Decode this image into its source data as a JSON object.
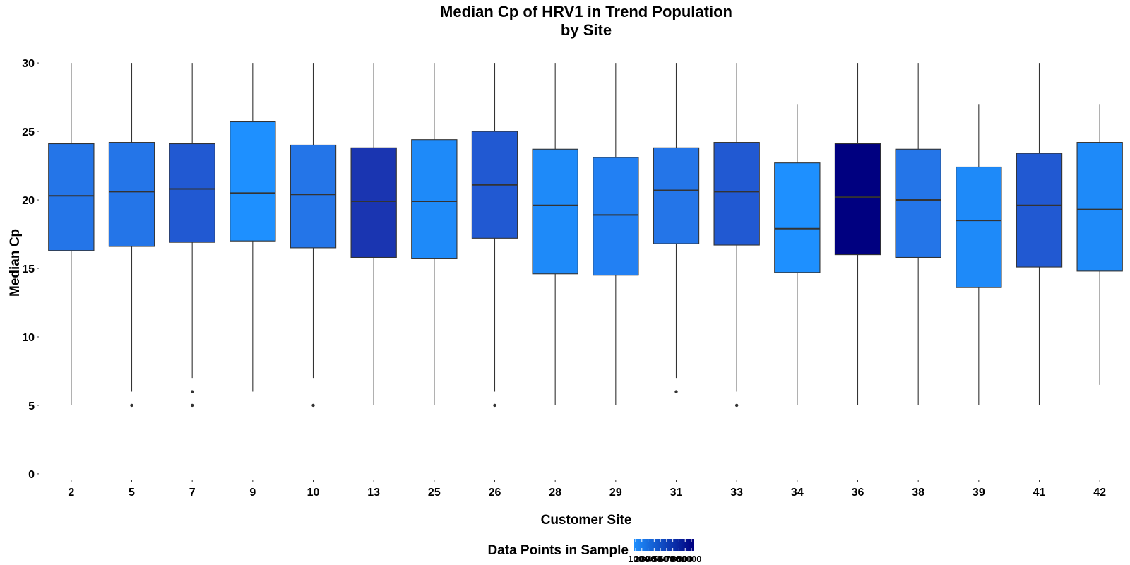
{
  "chart_data": {
    "type": "box",
    "title": [
      "Median Cp of HRV1 in Trend Population",
      "by Site"
    ],
    "xlabel": "Customer Site",
    "ylabel": "Median Cp",
    "ylim": [
      -1.5,
      31.5
    ],
    "yticks": [
      0,
      5,
      10,
      15,
      20,
      25,
      30
    ],
    "grid": false,
    "legend": {
      "title": "Data Points in Sample",
      "position": "bottom",
      "tick_labels": [
        "100",
        "200",
        "300",
        "400",
        "500",
        "600",
        "700",
        "800",
        "900",
        "1000"
      ],
      "color_low": "#1e90ff",
      "color_high": "#000080"
    },
    "boxes": [
      {
        "site": "2",
        "whisker_low": 5,
        "q1": 16.3,
        "median": 20.3,
        "q3": 24.1,
        "whisker_high": 30,
        "outliers": [],
        "n": 200,
        "color": "#2475e8"
      },
      {
        "site": "5",
        "whisker_low": 6,
        "q1": 16.6,
        "median": 20.6,
        "q3": 24.2,
        "whisker_high": 30,
        "outliers": [
          5
        ],
        "n": 200,
        "color": "#2475e8"
      },
      {
        "site": "7",
        "whisker_low": 7,
        "q1": 16.9,
        "median": 20.8,
        "q3": 24.1,
        "whisker_high": 30,
        "outliers": [
          6,
          5
        ],
        "n": 400,
        "color": "#2159d2"
      },
      {
        "site": "9",
        "whisker_low": 6,
        "q1": 17.0,
        "median": 20.5,
        "q3": 25.7,
        "whisker_high": 30,
        "outliers": [],
        "n": 100,
        "color": "#1e90ff"
      },
      {
        "site": "10",
        "whisker_low": 7,
        "q1": 16.5,
        "median": 20.4,
        "q3": 24.0,
        "whisker_high": 30,
        "outliers": [
          5
        ],
        "n": 200,
        "color": "#2475e8"
      },
      {
        "site": "13",
        "whisker_low": 5,
        "q1": 15.8,
        "median": 19.9,
        "q3": 23.8,
        "whisker_high": 30,
        "outliers": [],
        "n": 700,
        "color": "#1a35b1"
      },
      {
        "site": "25",
        "whisker_low": 5,
        "q1": 15.7,
        "median": 19.9,
        "q3": 24.4,
        "whisker_high": 30,
        "outliers": [],
        "n": 100,
        "color": "#1e8af9"
      },
      {
        "site": "26",
        "whisker_low": 6,
        "q1": 17.2,
        "median": 21.1,
        "q3": 25.0,
        "whisker_high": 30,
        "outliers": [
          5
        ],
        "n": 400,
        "color": "#2159d2"
      },
      {
        "site": "28",
        "whisker_low": 5,
        "q1": 14.6,
        "median": 19.6,
        "q3": 23.7,
        "whisker_high": 30,
        "outliers": [],
        "n": 100,
        "color": "#1e8af9"
      },
      {
        "site": "29",
        "whisker_low": 5,
        "q1": 14.5,
        "median": 18.9,
        "q3": 23.1,
        "whisker_high": 30,
        "outliers": [],
        "n": 200,
        "color": "#2280f3"
      },
      {
        "site": "31",
        "whisker_low": 7,
        "q1": 16.8,
        "median": 20.7,
        "q3": 23.8,
        "whisker_high": 30,
        "outliers": [
          6
        ],
        "n": 200,
        "color": "#2475e8"
      },
      {
        "site": "33",
        "whisker_low": 6,
        "q1": 16.7,
        "median": 20.6,
        "q3": 24.2,
        "whisker_high": 30,
        "outliers": [
          5
        ],
        "n": 400,
        "color": "#2159d2"
      },
      {
        "site": "34",
        "whisker_low": 5,
        "q1": 14.7,
        "median": 17.9,
        "q3": 22.7,
        "whisker_high": 27,
        "outliers": [],
        "n": 100,
        "color": "#1e90ff"
      },
      {
        "site": "36",
        "whisker_low": 5,
        "q1": 16.0,
        "median": 20.2,
        "q3": 24.1,
        "whisker_high": 30,
        "outliers": [],
        "n": 1000,
        "color": "#000080"
      },
      {
        "site": "38",
        "whisker_low": 5,
        "q1": 15.8,
        "median": 20.0,
        "q3": 23.7,
        "whisker_high": 30,
        "outliers": [],
        "n": 200,
        "color": "#2475e8"
      },
      {
        "site": "39",
        "whisker_low": 5,
        "q1": 13.6,
        "median": 18.5,
        "q3": 22.4,
        "whisker_high": 27,
        "outliers": [],
        "n": 100,
        "color": "#1e8af9"
      },
      {
        "site": "41",
        "whisker_low": 5,
        "q1": 15.1,
        "median": 19.6,
        "q3": 23.4,
        "whisker_high": 30,
        "outliers": [],
        "n": 400,
        "color": "#2159d2"
      },
      {
        "site": "42",
        "whisker_low": 6.5,
        "q1": 14.8,
        "median": 19.3,
        "q3": 24.2,
        "whisker_high": 27,
        "outliers": [],
        "n": 100,
        "color": "#1e8af9"
      }
    ]
  }
}
